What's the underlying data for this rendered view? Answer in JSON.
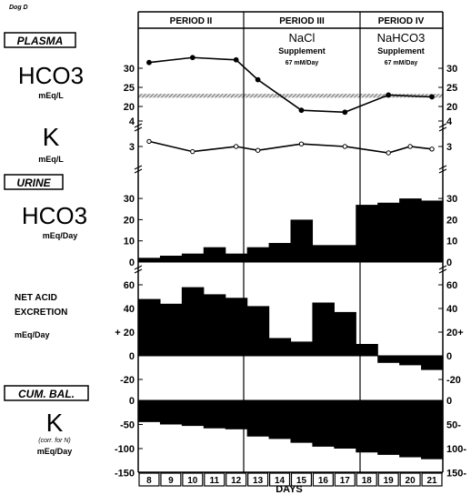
{
  "figure": {
    "corner_label": "Dog D",
    "xlabel": "DAYS",
    "periods": [
      {
        "name": "PERIOD II",
        "supplement": "",
        "dose": ""
      },
      {
        "name": "PERIOD III",
        "supplement": "NaCl Supplement",
        "dose": "67 mM/Day"
      },
      {
        "name": "PERIOD IV",
        "supplement": "NaHCO3 Supplement",
        "dose": "67 mM/Day"
      }
    ]
  },
  "chart_data": [
    {
      "panel": "plasma-hco3",
      "type": "line",
      "section_label": "PLASMA",
      "ylabel": "HCO3",
      "unit": "mEq/L",
      "ytick_labels": [
        "20",
        "25",
        "30"
      ],
      "right_tick_labels": [
        "20",
        "25",
        "30"
      ],
      "normal_band": [
        22.3,
        23.3
      ],
      "x": [
        8,
        10,
        12,
        13,
        15,
        17,
        19,
        21
      ],
      "y": [
        31.5,
        32.8,
        32.2,
        27,
        19,
        18.5,
        23,
        22.5
      ]
    },
    {
      "panel": "plasma-k",
      "type": "line",
      "ylabel": "K",
      "unit": "mEq/L",
      "ytick_labels": [
        "3",
        "4"
      ],
      "right_tick_labels": [
        "3",
        "4"
      ],
      "x": [
        8,
        10,
        12,
        13,
        15,
        17,
        19,
        20,
        21
      ],
      "y": [
        3.2,
        2.8,
        3.0,
        2.85,
        3.1,
        3.0,
        2.75,
        3.0,
        2.9
      ]
    },
    {
      "panel": "urine-hco3",
      "type": "bar",
      "section_label": "URINE",
      "ylabel": "HCO3",
      "unit": "mEq/Day",
      "ytick_labels": [
        "0",
        "10",
        "20",
        "30"
      ],
      "right_tick_labels": [
        "0",
        "10",
        "20",
        "30"
      ],
      "days": [
        "8",
        "9",
        "10",
        "11",
        "12",
        "13",
        "14",
        "15",
        "16",
        "17",
        "18",
        "19",
        "20",
        "21"
      ],
      "values": [
        2,
        3,
        4,
        7,
        4,
        7,
        9,
        20,
        8,
        8,
        27,
        28,
        30,
        29
      ]
    },
    {
      "panel": "net-acid-excretion",
      "type": "bar",
      "ylabel": "NET ACID EXCRETION",
      "unit": "mEq/Day",
      "ytick_labels": [
        "60",
        "40",
        "+ 20",
        "0",
        "-20"
      ],
      "right_tick_labels": [
        "60",
        "40",
        "20+",
        "0",
        "-20"
      ],
      "days": [
        "8",
        "9",
        "10",
        "11",
        "12",
        "13",
        "14",
        "15",
        "16",
        "17",
        "18",
        "19",
        "20",
        "21"
      ],
      "values": [
        48,
        44,
        58,
        52,
        49,
        42,
        15,
        12,
        45,
        37,
        10,
        -6,
        -8,
        -12
      ]
    },
    {
      "panel": "cumulative-balance-k",
      "type": "bar",
      "section_label": "CUM. BAL.",
      "ylabel": "K",
      "sublabel": "(corr. for N)",
      "unit": "mEq/Day",
      "ytick_labels": [
        "0",
        "-50",
        "-100",
        "-150"
      ],
      "right_tick_labels": [
        "0",
        "50-",
        "100-",
        "150-"
      ],
      "days": [
        "8",
        "9",
        "10",
        "11",
        "12",
        "13",
        "14",
        "15",
        "16",
        "17",
        "18",
        "19",
        "20",
        "21"
      ],
      "values": [
        -45,
        -50,
        -53,
        -58,
        -60,
        -75,
        -80,
        -88,
        -96,
        -100,
        -108,
        -113,
        -118,
        -122
      ]
    }
  ]
}
